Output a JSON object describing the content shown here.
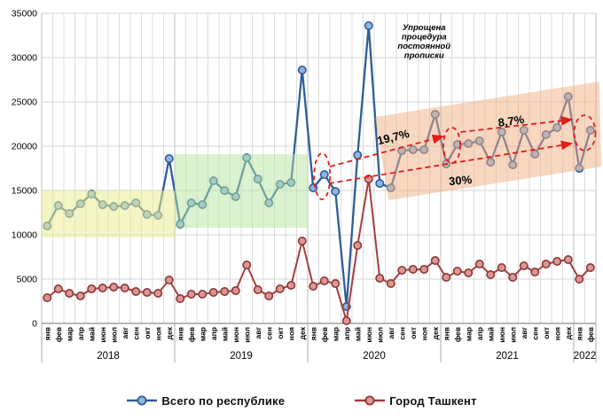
{
  "chart_data": {
    "type": "line",
    "title": "",
    "grid": true,
    "y_axis": {
      "min": 0,
      "max": 35000,
      "step": 5000,
      "tick_labels": [
        "0",
        "5000",
        "10000",
        "15000",
        "20000",
        "25000",
        "30000",
        "35000"
      ]
    },
    "x_axis": {
      "years": [
        {
          "label": "2018",
          "months": [
            "янв",
            "фев",
            "мар",
            "апр",
            "май",
            "июн",
            "июл",
            "авг",
            "сен",
            "окт",
            "ноя",
            "дек"
          ]
        },
        {
          "label": "2019",
          "months": [
            "янв",
            "фев",
            "мар",
            "апр",
            "май",
            "июн",
            "июл",
            "авг",
            "сен",
            "окт",
            "ноя",
            "дек"
          ]
        },
        {
          "label": "2020",
          "months": [
            "янв",
            "фев",
            "мар",
            "апр",
            "май",
            "июн",
            "июл",
            "авг",
            "сен",
            "окт",
            "ноя",
            "дек"
          ]
        },
        {
          "label": "2021",
          "months": [
            "янв",
            "фев",
            "мар",
            "апр",
            "май",
            "июн",
            "июл",
            "авг",
            "сен",
            "окт",
            "ноя",
            "дек"
          ]
        },
        {
          "label": "2022",
          "months": [
            "янв",
            "фев"
          ]
        }
      ]
    },
    "series": [
      {
        "name": "Всего по республике",
        "line_color": "#2F5D96",
        "marker_fill": "#8EB4DF",
        "marker_stroke": "#2F5D96",
        "values": [
          11000,
          13300,
          12400,
          13500,
          14600,
          13400,
          13200,
          13300,
          13600,
          12300,
          12200,
          18600,
          11200,
          13600,
          13400,
          16100,
          15000,
          14300,
          18700,
          16300,
          13600,
          15700,
          15900,
          28600,
          15300,
          16800,
          14900,
          1900,
          19000,
          33600,
          15800,
          15300,
          19500,
          19600,
          19600,
          23600,
          18000,
          20200,
          20300,
          20600,
          18200,
          21600,
          17900,
          21800,
          19100,
          21300,
          22100,
          25600,
          17500,
          21800
        ]
      },
      {
        "name": "Город Ташкент",
        "line_color": "#A23F3D",
        "marker_fill": "#D99795",
        "marker_stroke": "#8E3836",
        "values": [
          2900,
          3900,
          3400,
          3100,
          3900,
          4000,
          4100,
          4000,
          3600,
          3500,
          3400,
          4900,
          2800,
          3300,
          3300,
          3500,
          3600,
          3700,
          6600,
          3800,
          3100,
          3900,
          4300,
          9300,
          4200,
          4800,
          4500,
          300,
          8800,
          16300,
          5100,
          4500,
          6000,
          6100,
          6100,
          7100,
          5200,
          5900,
          5700,
          6700,
          5500,
          6300,
          5200,
          6500,
          5800,
          6700,
          7000,
          7200,
          5000,
          6300
        ]
      }
    ],
    "highlight_bands": [
      {
        "name": "band-2018",
        "color": "#EBED93",
        "opacity": 0.55,
        "from_boundary": 0,
        "to_boundary": 12,
        "top_value": 15000,
        "bottom_value": 9700
      },
      {
        "name": "band-2019",
        "color": "#B5E5A1",
        "opacity": 0.5,
        "from_boundary": 12,
        "to_boundary": 24,
        "top_value": 19100,
        "bottom_value": 10800
      },
      {
        "name": "band-growth",
        "color": "#F1B083",
        "opacity": 0.5,
        "corners": [
          [
            30.08,
            23300
          ],
          [
            50.3,
            27300
          ],
          [
            50.5,
            17700
          ],
          [
            31.3,
            13900
          ]
        ]
      }
    ],
    "annotations": {
      "note": {
        "lines": [
          "Упрощена",
          "процедура",
          "постоянной",
          "прописки"
        ],
        "x_month": 34.0,
        "y_value": 34000
      },
      "percent_labels": [
        {
          "text": "19,7%",
          "x_month": 31.3,
          "y_value": 21000,
          "rotation": -14
        },
        {
          "text": "8,7%",
          "x_month": 41.9,
          "y_value": 22800,
          "rotation": -8
        },
        {
          "text": "30%",
          "x_month": 37.3,
          "y_value": 16100,
          "rotation": -5
        }
      ],
      "ellipses": [
        {
          "x_month": 24.8,
          "y_value": 16600,
          "rx": 9,
          "ry": 26
        },
        {
          "x_month": 36.5,
          "y_value": 20100,
          "rx": 9.5,
          "ry": 20
        },
        {
          "x_month": 48.5,
          "y_value": 21500,
          "rx": 12,
          "ry": 20
        }
      ],
      "arrows": [
        {
          "from": [
            25.5,
            17700
          ],
          "to": [
            35.7,
            21100
          ]
        },
        {
          "from": [
            37.3,
            21600
          ],
          "to": [
            47.3,
            23000
          ]
        },
        {
          "from": [
            25.4,
            15800
          ],
          "to": [
            47.3,
            20300
          ]
        }
      ],
      "annotation_color": "#E31B1B"
    },
    "legend": {
      "items": [
        "Всего по республике",
        "Город Ташкент"
      ]
    }
  }
}
